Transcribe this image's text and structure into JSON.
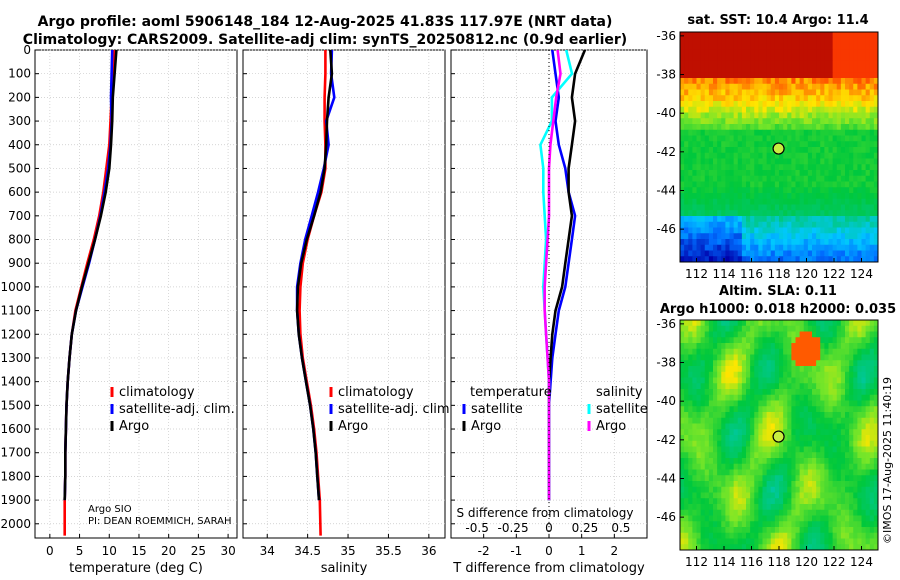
{
  "header": {
    "title_line1": "Argo profile: aoml 5906148_184 12-Aug-2025 41.83S 117.97E (NRT data)",
    "title_line2": "Climatology: CARS2009. Satellite-adj clim: synTS_20250812.nc (0.9d earlier)"
  },
  "colors": {
    "climatology": "#ff0000",
    "satellite_adj": "#0000ff",
    "argo": "#000000",
    "salinity_satellite": "#00ffff",
    "salinity_argo": "#ff00ff"
  },
  "credits": {
    "line1": "Argo SIO",
    "line2": "PI: DEAN ROEMMICH, SARAH",
    "stamp": "©IMOS 17-Aug-2025 11:40:19"
  },
  "chart_data": [
    {
      "id": "temperature-profile",
      "type": "line",
      "xlabel": "temperature (deg C)",
      "ylabel": "",
      "xlim": [
        -2.5,
        31.5
      ],
      "ylim": [
        2060,
        0
      ],
      "xticks": [
        "0",
        "5",
        "10",
        "15",
        "20",
        "25",
        "30"
      ],
      "xtick_values": [
        0,
        5,
        10,
        15,
        20,
        25,
        30
      ],
      "yticks": [
        "0",
        "100",
        "200",
        "300",
        "400",
        "500",
        "600",
        "700",
        "800",
        "900",
        "1000",
        "1100",
        "1200",
        "1300",
        "1400",
        "1500",
        "1600",
        "1700",
        "1800",
        "1900",
        "2000"
      ],
      "ytick_values": [
        0,
        100,
        200,
        300,
        400,
        500,
        600,
        700,
        800,
        900,
        1000,
        1100,
        1200,
        1300,
        1400,
        1500,
        1600,
        1700,
        1800,
        1900,
        2000
      ],
      "legend": [
        "climatology",
        "satellite-adj. clim.",
        "Argo"
      ],
      "series": [
        {
          "name": "climatology",
          "color": "#ff0000",
          "x": [
            10.8,
            10.6,
            10.4,
            10.2,
            10.0,
            9.5,
            9.0,
            8.3,
            7.4,
            6.3,
            5.3,
            4.3,
            3.7,
            3.3,
            3.0,
            2.8,
            2.7,
            2.6,
            2.6,
            2.5,
            2.5
          ],
          "y": [
            0,
            100,
            200,
            300,
            400,
            500,
            600,
            700,
            800,
            900,
            1000,
            1100,
            1200,
            1300,
            1400,
            1500,
            1600,
            1700,
            1800,
            1900,
            2050
          ]
        },
        {
          "name": "satellite-adj. clim.",
          "color": "#0000ff",
          "x": [
            10.5,
            10.4,
            10.3,
            10.4,
            10.2,
            9.8,
            9.2,
            8.5,
            7.6,
            6.6,
            5.5,
            4.4,
            3.7,
            3.3,
            3.0,
            2.8,
            2.7,
            2.6,
            2.6,
            2.5
          ],
          "y": [
            0,
            100,
            200,
            300,
            400,
            500,
            600,
            700,
            800,
            900,
            1000,
            1100,
            1200,
            1300,
            1400,
            1500,
            1600,
            1700,
            1800,
            1900
          ]
        },
        {
          "name": "Argo",
          "color": "#000000",
          "x": [
            11.2,
            10.9,
            10.6,
            10.5,
            10.3,
            10.0,
            9.4,
            8.6,
            7.6,
            6.5,
            5.4,
            4.4,
            3.7,
            3.3,
            3.0,
            2.8,
            2.7,
            2.6,
            2.6,
            2.5
          ],
          "y": [
            0,
            100,
            200,
            300,
            400,
            500,
            600,
            700,
            800,
            900,
            1000,
            1100,
            1200,
            1300,
            1400,
            1500,
            1600,
            1700,
            1800,
            1900
          ]
        }
      ]
    },
    {
      "id": "salinity-profile",
      "type": "line",
      "xlabel": "salinity",
      "xlim": [
        33.7,
        36.2
      ],
      "ylim": [
        2060,
        0
      ],
      "xticks": [
        "34",
        "34.5",
        "35",
        "35.5",
        "36"
      ],
      "xtick_values": [
        34,
        34.5,
        35,
        35.5,
        36
      ],
      "legend": [
        "climatology",
        "satellite-adj. clim.",
        "Argo"
      ],
      "series": [
        {
          "name": "climatology",
          "color": "#ff0000",
          "x": [
            34.72,
            34.72,
            34.71,
            34.71,
            34.72,
            34.72,
            34.67,
            34.58,
            34.5,
            34.44,
            34.41,
            34.4,
            34.41,
            34.44,
            34.49,
            34.54,
            34.58,
            34.61,
            34.63,
            34.65,
            34.66
          ],
          "y": [
            0,
            100,
            200,
            300,
            400,
            500,
            600,
            700,
            800,
            900,
            1000,
            1100,
            1200,
            1300,
            1400,
            1500,
            1600,
            1700,
            1800,
            1900,
            2050
          ]
        },
        {
          "name": "satellite-adj. clim.",
          "color": "#0000ff",
          "x": [
            34.8,
            34.79,
            34.83,
            34.73,
            34.76,
            34.7,
            34.63,
            34.55,
            34.47,
            34.41,
            34.37,
            34.37,
            34.39,
            34.43,
            34.48,
            34.53,
            34.57,
            34.6,
            34.62,
            34.64
          ],
          "y": [
            0,
            100,
            200,
            300,
            400,
            500,
            600,
            700,
            800,
            900,
            1000,
            1100,
            1200,
            1300,
            1400,
            1500,
            1600,
            1700,
            1800,
            1900
          ]
        },
        {
          "name": "Argo",
          "color": "#000000",
          "x": [
            34.78,
            34.8,
            34.76,
            34.74,
            34.73,
            34.71,
            34.66,
            34.58,
            34.49,
            34.42,
            34.38,
            34.37,
            34.39,
            34.43,
            34.48,
            34.53,
            34.57,
            34.6,
            34.62,
            34.64
          ],
          "y": [
            0,
            100,
            200,
            300,
            400,
            500,
            600,
            700,
            800,
            900,
            1000,
            1100,
            1200,
            1300,
            1400,
            1500,
            1600,
            1700,
            1800,
            1900
          ]
        }
      ]
    },
    {
      "id": "difference-profile",
      "type": "line",
      "xlabel": "T difference from climatology",
      "secondary_label": "S difference from climatology",
      "xlim": [
        -3,
        3
      ],
      "ylim": [
        2060,
        0
      ],
      "xticks": [
        "-2",
        "-1",
        "0",
        "1",
        "2"
      ],
      "xtick_values": [
        -2,
        -1,
        0,
        1,
        2
      ],
      "sticks": [
        "-0.5",
        "-0.25",
        "0",
        "0.25",
        "0.5"
      ],
      "stick_values": [
        -0.5,
        -0.25,
        0,
        0.25,
        0.5
      ],
      "legend_temperature": {
        "title": "temperature",
        "items": [
          "satellite",
          "Argo"
        ]
      },
      "legend_salinity": {
        "title": "salinity",
        "items": [
          "satellite",
          "Argo"
        ]
      },
      "series": [
        {
          "name": "temperature satellite",
          "color": "#0000ff",
          "x": [
            0.1,
            0.2,
            0.3,
            0.2,
            0.3,
            0.5,
            0.6,
            0.8,
            0.7,
            0.6,
            0.5,
            0.3,
            0.2,
            0.1,
            0.05,
            0.0,
            0.0,
            0.0,
            0.0,
            0.0
          ],
          "y": [
            0,
            100,
            200,
            300,
            400,
            500,
            600,
            700,
            800,
            900,
            1000,
            1100,
            1200,
            1300,
            1400,
            1500,
            1600,
            1700,
            1800,
            1900
          ]
        },
        {
          "name": "temperature Argo",
          "color": "#000000",
          "x": [
            1.1,
            0.8,
            0.7,
            0.8,
            0.7,
            0.6,
            0.6,
            0.7,
            0.6,
            0.5,
            0.4,
            0.2,
            0.1,
            0.05,
            0.0,
            0.0,
            0.0,
            0.0,
            0.0,
            0.0
          ],
          "y": [
            0,
            100,
            200,
            300,
            400,
            500,
            600,
            700,
            800,
            900,
            1000,
            1100,
            1200,
            1300,
            1400,
            1500,
            1600,
            1700,
            1800,
            1900
          ]
        },
        {
          "name": "salinity satellite",
          "color": "#00ffff",
          "x": [
            0.12,
            0.16,
            0.02,
            0.02,
            -0.06,
            -0.04,
            -0.04,
            -0.03,
            -0.02,
            -0.03,
            -0.04,
            -0.03,
            -0.02,
            -0.01,
            0.0,
            0.0,
            0.0,
            0.0,
            0.0,
            0.0
          ],
          "y": [
            0,
            100,
            200,
            300,
            400,
            500,
            600,
            700,
            800,
            900,
            1000,
            1100,
            1200,
            1300,
            1400,
            1500,
            1600,
            1700,
            1800,
            1900
          ]
        },
        {
          "name": "salinity Argo",
          "color": "#ff00ff",
          "x": [
            0.06,
            0.08,
            0.05,
            0.03,
            0.01,
            0.0,
            0.0,
            0.0,
            -0.01,
            -0.02,
            -0.03,
            -0.03,
            -0.02,
            -0.01,
            0.0,
            0.0,
            0.0,
            0.0,
            0.0,
            0.0
          ],
          "y": [
            0,
            100,
            200,
            300,
            400,
            500,
            600,
            700,
            800,
            900,
            1000,
            1100,
            1200,
            1300,
            1400,
            1500,
            1600,
            1700,
            1800,
            1900
          ]
        }
      ]
    },
    {
      "id": "sst-map",
      "type": "heatmap",
      "title": "sat. SST: 10.4  Argo: 11.4",
      "xticks": [
        "112",
        "114",
        "116",
        "118",
        "120",
        "122",
        "124"
      ],
      "xtick_values": [
        112,
        114,
        116,
        118,
        120,
        122,
        124
      ],
      "yticks": [
        "-36",
        "-38",
        "-40",
        "-42",
        "-44",
        "-46"
      ],
      "ytick_values": [
        -36,
        -38,
        -40,
        -42,
        -44,
        -46
      ],
      "xlim": [
        110.8,
        125.2
      ],
      "ylim": [
        -47.7,
        -35.8
      ],
      "marker": {
        "lon": 117.97,
        "lat": -41.83
      }
    },
    {
      "id": "sla-map",
      "type": "heatmap",
      "title": "Altim. SLA: 0.11",
      "subtitle": "Argo h1000: 0.018 h2000: 0.035",
      "xticks": [
        "112",
        "114",
        "116",
        "118",
        "120",
        "122",
        "124"
      ],
      "xtick_values": [
        112,
        114,
        116,
        118,
        120,
        122,
        124
      ],
      "yticks": [
        "-36",
        "-38",
        "-40",
        "-42",
        "-44",
        "-46"
      ],
      "ytick_values": [
        -36,
        -38,
        -40,
        -42,
        -44,
        -46
      ],
      "xlim": [
        110.8,
        125.2
      ],
      "ylim": [
        -47.7,
        -35.8
      ],
      "marker": {
        "lon": 117.97,
        "lat": -41.83
      }
    }
  ]
}
